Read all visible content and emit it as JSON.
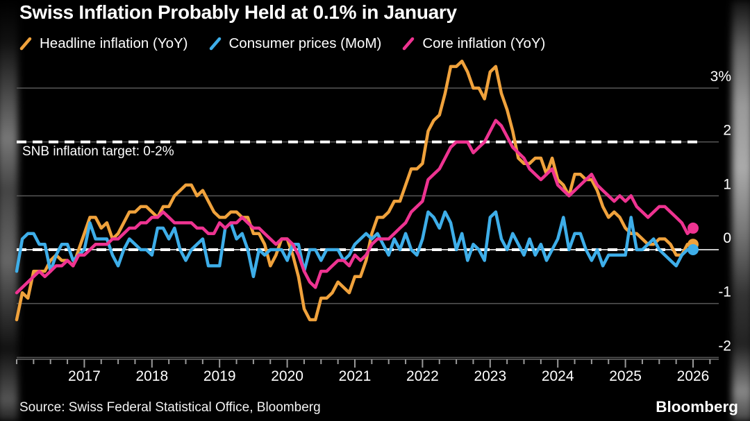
{
  "title": "Swiss Inflation Probably Held at 0.1% in January",
  "annotation": {
    "snb_target_label": "SNB inflation target: 0-2%"
  },
  "source": "Source: Swiss Federal Statistical Office, Bloomberg",
  "brand": "Bloomberg",
  "legend": [
    {
      "label": "Headline inflation (YoY)",
      "color": "#F0A23C"
    },
    {
      "label": "Consumer prices (MoM)",
      "color": "#3EAEE9"
    },
    {
      "label": "Core inflation (YoY)",
      "color": "#EE3391"
    }
  ],
  "colors": {
    "background": "#000000",
    "gridline": "#585858",
    "zero_line": "#c8c8c8",
    "dashed_reference": "#ffffff",
    "axis": "#6a6a6a",
    "tick": "#9a9a9a",
    "text": "#ffffff",
    "headline": "#F0A23C",
    "consumer_mom": "#3EAEE9",
    "core": "#EE3391"
  },
  "chart_data": {
    "type": "line",
    "title": "Swiss Inflation Probably Held at 0.1% in January",
    "x_start": "2016-01",
    "x_end": "2026-01",
    "points_per_year": 12,
    "x_tick_labels": [
      "2017",
      "2018",
      "2019",
      "2020",
      "2021",
      "2022",
      "2023",
      "2024",
      "2025",
      "2026"
    ],
    "y_ticks": [
      3,
      2,
      1,
      0,
      -1,
      -2
    ],
    "y_tick_labels": [
      "3%",
      "2",
      "1",
      "0",
      "-1",
      "-2"
    ],
    "ylim": [
      -2.05,
      3.6
    ],
    "grid": "horizontal",
    "legend_position": "top",
    "reference_lines": [
      {
        "value": 2,
        "style": "dashed",
        "color": "#ffffff",
        "label": "SNB inflation target: 0-2%"
      },
      {
        "value": 0,
        "style": "dashed",
        "color": "#ffffff",
        "label": ""
      }
    ],
    "end_point_markers": true,
    "last_values": {
      "headline": 0.1,
      "consumer_mom": 0.0,
      "core": 0.4
    },
    "series": [
      {
        "name": "Headline inflation (YoY)",
        "color": "#F0A23C",
        "values": [
          -1.3,
          -0.8,
          -0.9,
          -0.4,
          -0.4,
          -0.4,
          -0.2,
          -0.1,
          -0.2,
          -0.2,
          -0.3,
          0.0,
          0.3,
          0.6,
          0.6,
          0.4,
          0.5,
          0.2,
          0.3,
          0.5,
          0.7,
          0.7,
          0.8,
          0.8,
          0.7,
          0.6,
          0.8,
          0.8,
          1.0,
          1.1,
          1.2,
          1.2,
          1.0,
          1.1,
          0.9,
          0.7,
          0.6,
          0.6,
          0.7,
          0.7,
          0.6,
          0.6,
          0.3,
          0.3,
          0.1,
          -0.3,
          -0.1,
          0.2,
          0.2,
          -0.1,
          -0.5,
          -1.1,
          -1.3,
          -1.3,
          -0.9,
          -0.9,
          -0.8,
          -0.6,
          -0.7,
          -0.8,
          -0.5,
          -0.5,
          -0.2,
          0.3,
          0.6,
          0.6,
          0.7,
          0.9,
          0.9,
          1.2,
          1.5,
          1.5,
          1.6,
          2.2,
          2.4,
          2.5,
          2.9,
          3.4,
          3.4,
          3.5,
          3.3,
          3.0,
          3.0,
          2.8,
          3.3,
          3.4,
          2.9,
          2.6,
          2.2,
          1.7,
          1.6,
          1.6,
          1.7,
          1.7,
          1.4,
          1.7,
          1.3,
          1.2,
          1.0,
          1.4,
          1.4,
          1.3,
          1.3,
          1.1,
          0.8,
          0.6,
          0.7,
          0.6,
          0.4,
          0.3,
          0.3,
          0.2,
          0.1,
          0.1,
          0.2,
          0.2,
          0.1,
          -0.1,
          -0.1,
          0.1,
          0.1
        ]
      },
      {
        "name": "Consumer prices (MoM)",
        "color": "#3EAEE9",
        "values": [
          -0.4,
          0.2,
          0.3,
          0.3,
          0.1,
          0.1,
          -0.4,
          -0.1,
          0.1,
          0.1,
          -0.2,
          -0.1,
          0.0,
          0.5,
          0.2,
          0.2,
          0.2,
          -0.1,
          -0.3,
          0.0,
          0.2,
          0.1,
          0.0,
          0.0,
          -0.1,
          0.4,
          0.4,
          0.2,
          0.4,
          0.0,
          -0.2,
          0.0,
          0.1,
          0.2,
          -0.3,
          -0.3,
          -0.3,
          0.4,
          0.5,
          0.2,
          0.3,
          0.0,
          -0.5,
          0.0,
          -0.1,
          0.0,
          0.0,
          0.0,
          -0.2,
          0.1,
          0.1,
          -0.4,
          0.0,
          0.0,
          -0.2,
          0.0,
          0.0,
          0.0,
          -0.2,
          -0.1,
          0.1,
          0.2,
          0.3,
          0.2,
          0.3,
          0.1,
          -0.1,
          0.2,
          0.0,
          0.3,
          0.0,
          -0.1,
          0.2,
          0.7,
          0.6,
          0.4,
          0.7,
          0.5,
          0.0,
          0.3,
          -0.2,
          0.1,
          0.0,
          -0.2,
          0.6,
          0.7,
          0.2,
          0.0,
          0.3,
          0.1,
          -0.1,
          0.2,
          -0.1,
          0.1,
          -0.2,
          0.0,
          0.2,
          0.6,
          0.0,
          0.3,
          0.3,
          0.0,
          -0.2,
          0.0,
          -0.3,
          -0.1,
          -0.1,
          -0.1,
          -0.1,
          0.6,
          0.0,
          0.0,
          0.1,
          0.2,
          0.0,
          -0.1,
          -0.2,
          -0.3,
          -0.1,
          0.0,
          0.0
        ]
      },
      {
        "name": "Core inflation (YoY)",
        "color": "#EE3391",
        "values": [
          -0.8,
          -0.7,
          -0.6,
          -0.5,
          -0.4,
          -0.5,
          -0.4,
          -0.3,
          -0.3,
          -0.2,
          -0.3,
          -0.1,
          -0.1,
          0.0,
          0.1,
          0.1,
          0.1,
          0.2,
          0.2,
          0.3,
          0.4,
          0.4,
          0.5,
          0.5,
          0.6,
          0.6,
          0.7,
          0.6,
          0.5,
          0.5,
          0.5,
          0.5,
          0.4,
          0.4,
          0.3,
          0.3,
          0.5,
          0.4,
          0.5,
          0.5,
          0.6,
          0.5,
          0.4,
          0.4,
          0.3,
          0.2,
          0.1,
          0.2,
          0.2,
          0.1,
          -0.1,
          -0.4,
          -0.6,
          -0.7,
          -0.4,
          -0.4,
          -0.3,
          -0.2,
          -0.2,
          -0.3,
          -0.1,
          -0.2,
          -0.1,
          0.1,
          0.2,
          0.2,
          0.2,
          0.3,
          0.4,
          0.5,
          0.7,
          0.8,
          0.9,
          1.3,
          1.4,
          1.5,
          1.7,
          1.9,
          2.0,
          2.0,
          2.0,
          1.8,
          1.9,
          2.0,
          2.2,
          2.4,
          2.3,
          2.1,
          1.9,
          1.8,
          1.7,
          1.5,
          1.4,
          1.3,
          1.4,
          1.5,
          1.2,
          1.1,
          1.0,
          1.1,
          1.2,
          1.3,
          1.4,
          1.2,
          1.1,
          1.0,
          0.9,
          1.0,
          0.9,
          1.0,
          0.8,
          0.7,
          0.6,
          0.7,
          0.8,
          0.8,
          0.7,
          0.6,
          0.5,
          0.3,
          0.4
        ]
      }
    ]
  }
}
